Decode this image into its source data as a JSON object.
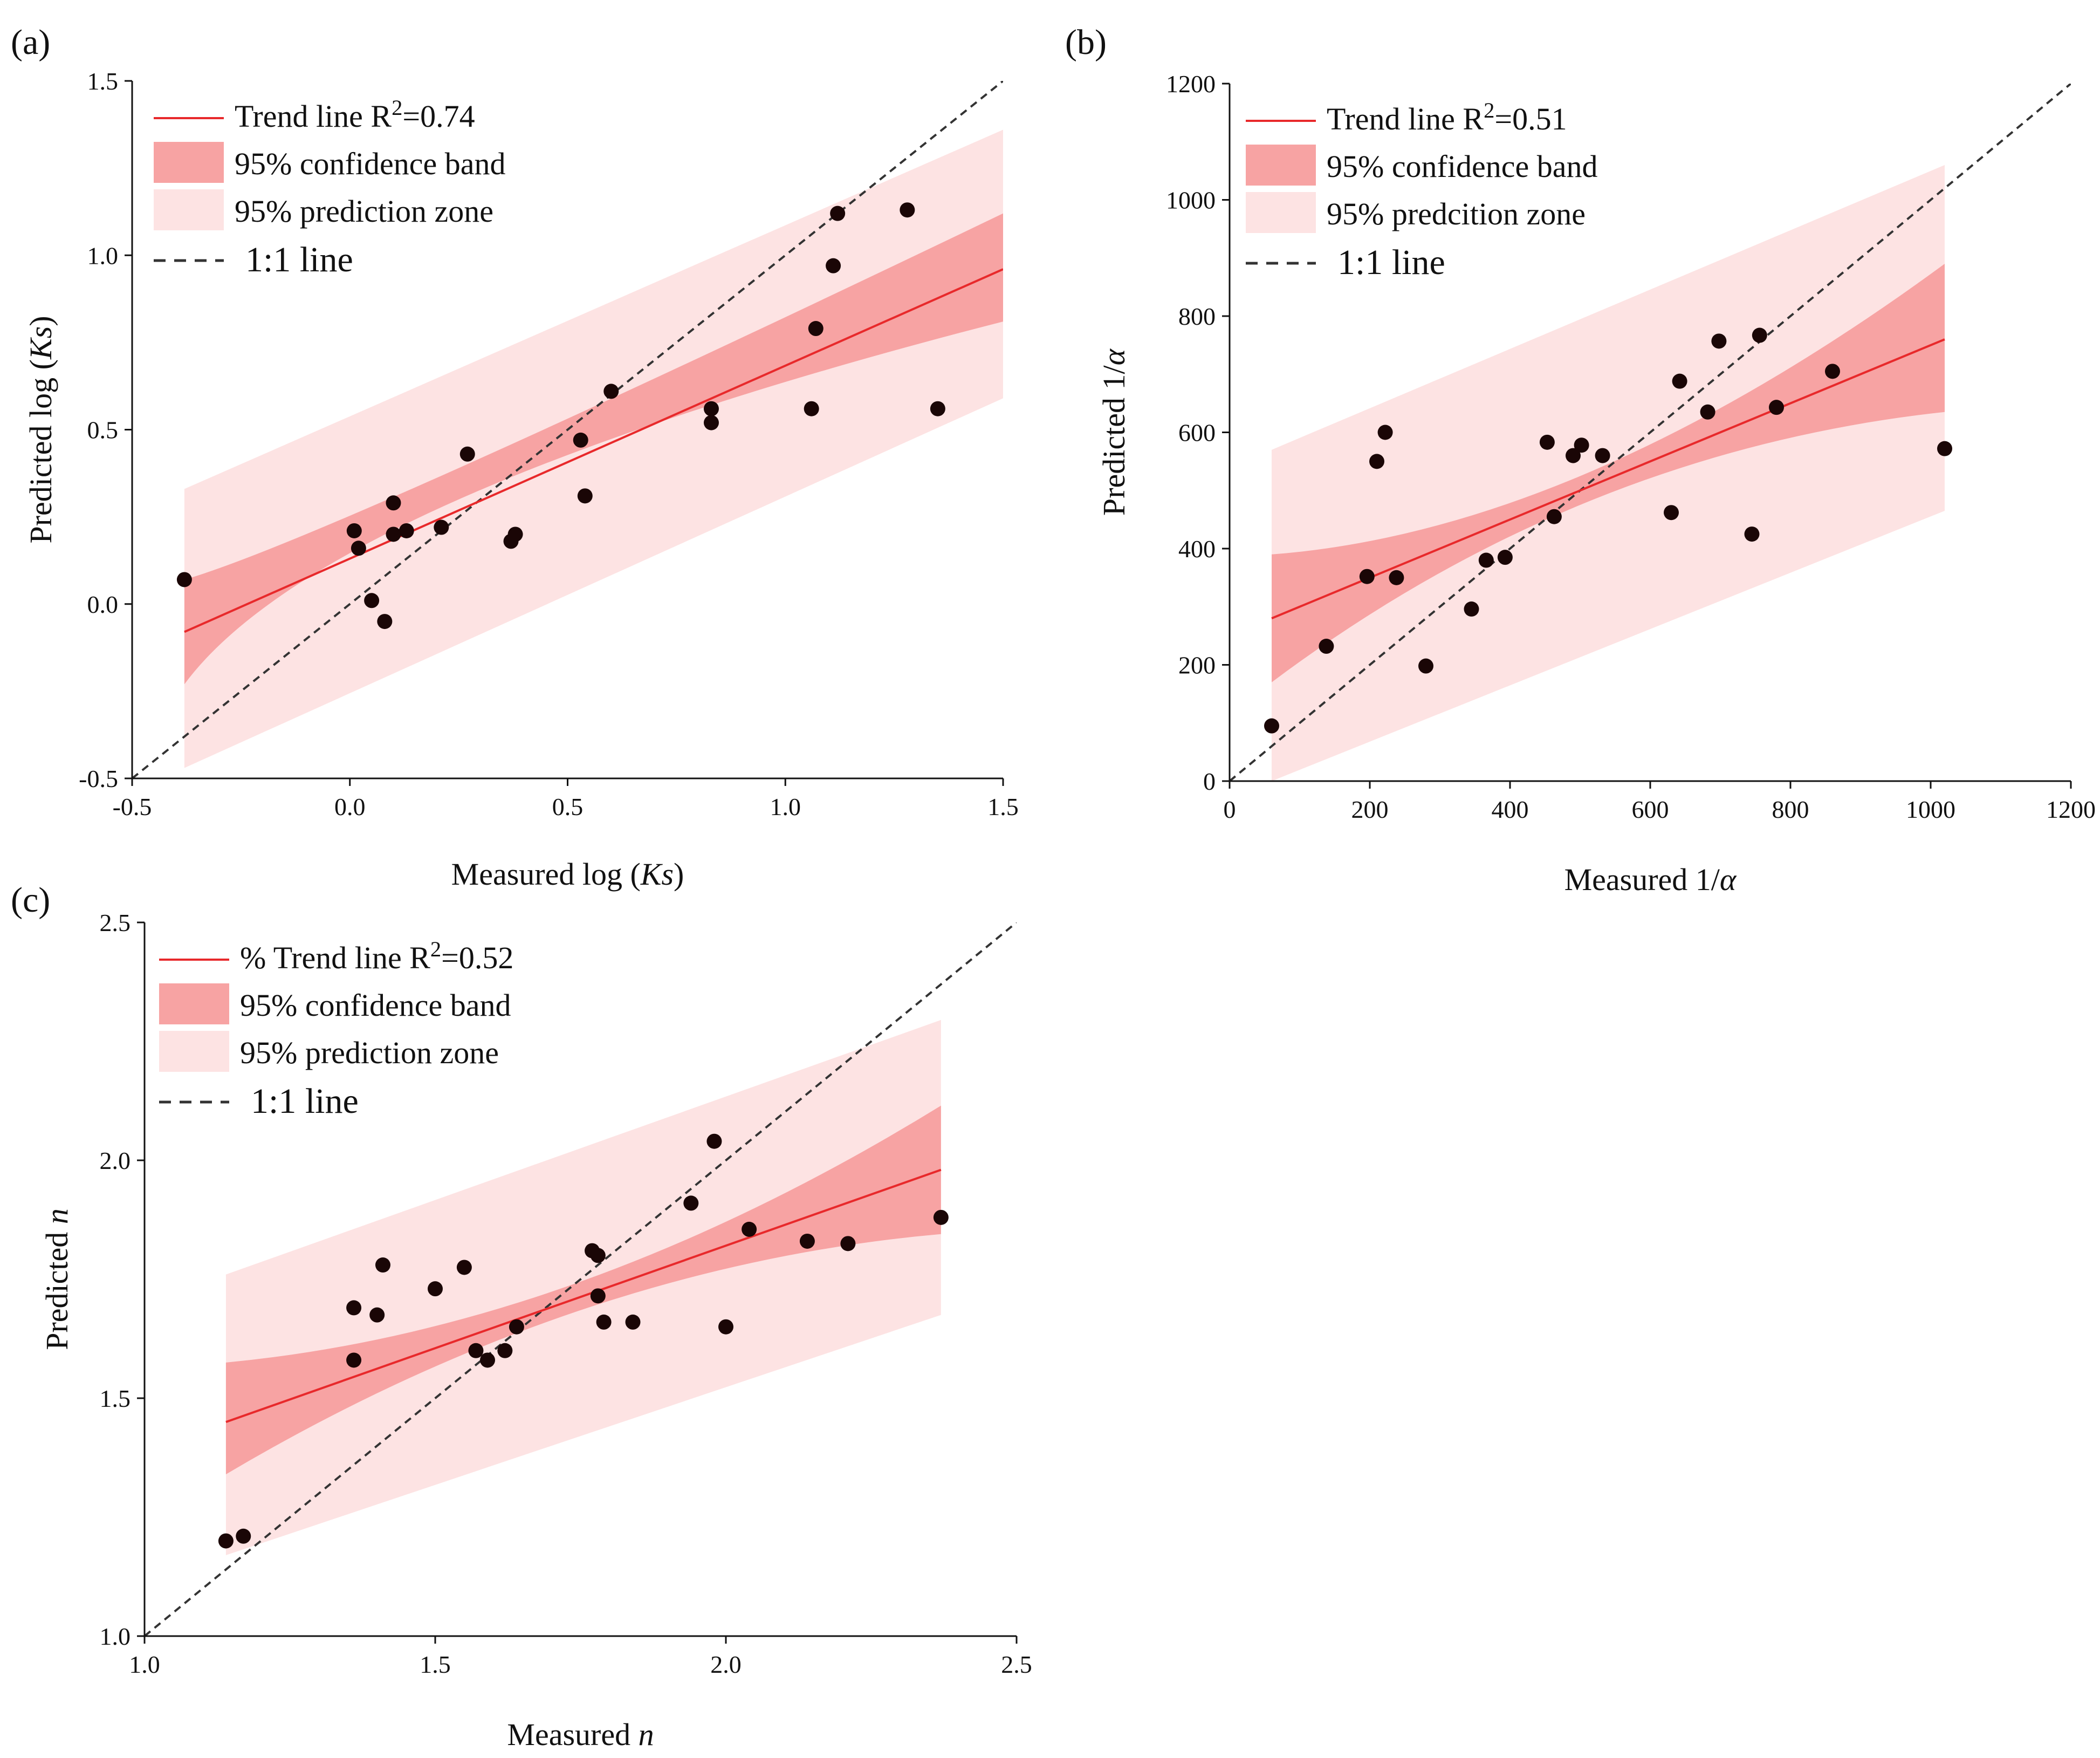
{
  "figure": {
    "panels": [
      "(a)",
      "(b)",
      "(c)"
    ]
  },
  "colors": {
    "trend": "#e8292b",
    "confidence": "#f7a3a3",
    "prediction": "#fde3e3",
    "points": "#1a0606",
    "one_to_one": "#333333"
  },
  "chart_data": [
    {
      "id": "a",
      "type": "scatter",
      "panel_label": "(a)",
      "xlabel_pre": "Measured log (",
      "xlabel_var": "Ks",
      "xlabel_post": ")",
      "ylabel_pre": "Predicted log  (",
      "ylabel_var": "Ks",
      "ylabel_post": ")",
      "xlim": [
        -0.5,
        1.5
      ],
      "ylim": [
        -0.5,
        1.5
      ],
      "xticks": [
        -0.5,
        0.0,
        0.5,
        1.0,
        1.5
      ],
      "yticks": [
        -0.5,
        0.0,
        0.5,
        1.0,
        1.5
      ],
      "xtick_labels": [
        "-0.5",
        "0.0",
        "0.5",
        "1.0",
        "1.5"
      ],
      "ytick_labels": [
        "-0.5",
        "0.0",
        "0.5",
        "1.0",
        "1.5"
      ],
      "legend": {
        "trend": "Trend line R",
        "trend_sup": "2",
        "trend_val": "=0.74",
        "confidence": "95% confidence band",
        "prediction": "95% prediction zone",
        "one_to_one": "1:1 line"
      },
      "fit": {
        "x_range": [
          -0.38,
          1.5
        ],
        "y_range": [
          -0.08,
          0.96
        ]
      },
      "confidence_band": {
        "x": [
          -0.38,
          0.25,
          1.5
        ],
        "lower": [
          -0.23,
          0.3,
          0.81
        ],
        "upper": [
          0.07,
          0.39,
          1.12
        ]
      },
      "prediction_band": {
        "x": [
          -0.38,
          1.5
        ],
        "lower": [
          -0.47,
          0.59
        ],
        "upper": [
          0.33,
          1.36
        ]
      },
      "points": [
        {
          "x": -0.38,
          "y": 0.07
        },
        {
          "x": 0.01,
          "y": 0.21
        },
        {
          "x": 0.02,
          "y": 0.16
        },
        {
          "x": 0.05,
          "y": 0.01
        },
        {
          "x": 0.08,
          "y": -0.05
        },
        {
          "x": 0.1,
          "y": 0.2
        },
        {
          "x": 0.1,
          "y": 0.29
        },
        {
          "x": 0.13,
          "y": 0.21
        },
        {
          "x": 0.21,
          "y": 0.22
        },
        {
          "x": 0.27,
          "y": 0.43
        },
        {
          "x": 0.37,
          "y": 0.18
        },
        {
          "x": 0.38,
          "y": 0.2
        },
        {
          "x": 0.53,
          "y": 0.47
        },
        {
          "x": 0.54,
          "y": 0.31
        },
        {
          "x": 0.6,
          "y": 0.61
        },
        {
          "x": 0.83,
          "y": 0.52
        },
        {
          "x": 0.83,
          "y": 0.56
        },
        {
          "x": 1.06,
          "y": 0.56
        },
        {
          "x": 1.07,
          "y": 0.79
        },
        {
          "x": 1.11,
          "y": 0.97
        },
        {
          "x": 1.12,
          "y": 1.12
        },
        {
          "x": 1.28,
          "y": 1.13
        },
        {
          "x": 1.35,
          "y": 0.56
        }
      ]
    },
    {
      "id": "b",
      "type": "scatter",
      "panel_label": "(b)",
      "xlabel_pre": "Measured  1/",
      "xlabel_var": "α",
      "xlabel_post": "",
      "ylabel_pre": "Predicted  1/",
      "ylabel_var": "α",
      "ylabel_post": "",
      "xlim": [
        0,
        1200
      ],
      "ylim": [
        0,
        1200
      ],
      "xticks": [
        0,
        200,
        400,
        600,
        800,
        1000,
        1200
      ],
      "yticks": [
        0,
        200,
        400,
        600,
        800,
        1000,
        1200
      ],
      "xtick_labels": [
        "0",
        "200",
        "400",
        "600",
        "800",
        "1000",
        "1200"
      ],
      "ytick_labels": [
        "0",
        "200",
        "400",
        "600",
        "800",
        "1000",
        "1200"
      ],
      "legend": {
        "trend": "Trend line R",
        "trend_sup": "2",
        "trend_val": "=0.51",
        "confidence": "95% confidence band",
        "prediction": "95% predcition zone",
        "one_to_one": "1:1 line"
      },
      "fit": {
        "x_range": [
          60,
          1020
        ],
        "y_range": [
          280,
          760
        ]
      },
      "confidence_band": {
        "x": [
          60,
          520,
          1020
        ],
        "lower": [
          170,
          485,
          635
        ],
        "upper": [
          390,
          535,
          890
        ]
      },
      "prediction_band": {
        "x": [
          60,
          1020
        ],
        "lower": [
          0,
          465
        ],
        "upper": [
          570,
          1060
        ]
      },
      "points": [
        {
          "x": 60,
          "y": 95
        },
        {
          "x": 138,
          "y": 232
        },
        {
          "x": 196,
          "y": 352
        },
        {
          "x": 210,
          "y": 550
        },
        {
          "x": 222,
          "y": 600
        },
        {
          "x": 238,
          "y": 350
        },
        {
          "x": 280,
          "y": 198
        },
        {
          "x": 345,
          "y": 296
        },
        {
          "x": 366,
          "y": 380
        },
        {
          "x": 393,
          "y": 385
        },
        {
          "x": 453,
          "y": 583
        },
        {
          "x": 463,
          "y": 455
        },
        {
          "x": 490,
          "y": 560
        },
        {
          "x": 502,
          "y": 578
        },
        {
          "x": 532,
          "y": 560
        },
        {
          "x": 630,
          "y": 462
        },
        {
          "x": 642,
          "y": 688
        },
        {
          "x": 682,
          "y": 635
        },
        {
          "x": 698,
          "y": 757
        },
        {
          "x": 745,
          "y": 425
        },
        {
          "x": 756,
          "y": 767
        },
        {
          "x": 780,
          "y": 643
        },
        {
          "x": 860,
          "y": 705
        },
        {
          "x": 1020,
          "y": 572
        }
      ]
    },
    {
      "id": "c",
      "type": "scatter",
      "panel_label": "(c)",
      "xlabel_pre": "Measured ",
      "xlabel_var": "n",
      "xlabel_post": "",
      "ylabel_pre": "Predicted ",
      "ylabel_var": "n",
      "ylabel_post": "",
      "xlim": [
        1.0,
        2.5
      ],
      "ylim": [
        1.0,
        2.5
      ],
      "xticks": [
        1.0,
        1.5,
        2.0,
        2.5
      ],
      "yticks": [
        1.0,
        1.5,
        2.0,
        2.5
      ],
      "xtick_labels": [
        "1.0",
        "1.5",
        "2.0",
        "2.5"
      ],
      "ytick_labels": [
        "1.0",
        "1.5",
        "2.0",
        "2.5"
      ],
      "legend": {
        "trend": "% Trend line R",
        "trend_sup": "2",
        "trend_val": "=0.52",
        "confidence": "95% confidence band",
        "prediction": "95% prediction zone",
        "one_to_one": "1:1 line"
      },
      "fit": {
        "x_range": [
          1.14,
          2.37
        ],
        "y_range": [
          1.45,
          1.98
        ]
      },
      "confidence_band": {
        "x": [
          1.14,
          1.75,
          2.37
        ],
        "lower": [
          1.34,
          1.685,
          1.845
        ],
        "upper": [
          1.575,
          1.745,
          2.115
        ]
      },
      "prediction_band": {
        "x": [
          1.14,
          2.37
        ],
        "lower": [
          1.17,
          1.675
        ],
        "upper": [
          1.76,
          2.295
        ]
      },
      "points": [
        {
          "x": 1.14,
          "y": 1.2
        },
        {
          "x": 1.17,
          "y": 1.21
        },
        {
          "x": 1.36,
          "y": 1.58
        },
        {
          "x": 1.36,
          "y": 1.69
        },
        {
          "x": 1.4,
          "y": 1.675
        },
        {
          "x": 1.41,
          "y": 1.78
        },
        {
          "x": 1.5,
          "y": 1.73
        },
        {
          "x": 1.55,
          "y": 1.775
        },
        {
          "x": 1.57,
          "y": 1.6
        },
        {
          "x": 1.59,
          "y": 1.58
        },
        {
          "x": 1.62,
          "y": 1.6
        },
        {
          "x": 1.64,
          "y": 1.65
        },
        {
          "x": 1.77,
          "y": 1.81
        },
        {
          "x": 1.78,
          "y": 1.8
        },
        {
          "x": 1.78,
          "y": 1.715
        },
        {
          "x": 1.79,
          "y": 1.66
        },
        {
          "x": 1.84,
          "y": 1.66
        },
        {
          "x": 1.94,
          "y": 1.91
        },
        {
          "x": 1.98,
          "y": 2.04
        },
        {
          "x": 2.0,
          "y": 1.65
        },
        {
          "x": 2.04,
          "y": 1.855
        },
        {
          "x": 2.14,
          "y": 1.83
        },
        {
          "x": 2.21,
          "y": 1.825
        },
        {
          "x": 2.37,
          "y": 1.88
        }
      ]
    }
  ]
}
